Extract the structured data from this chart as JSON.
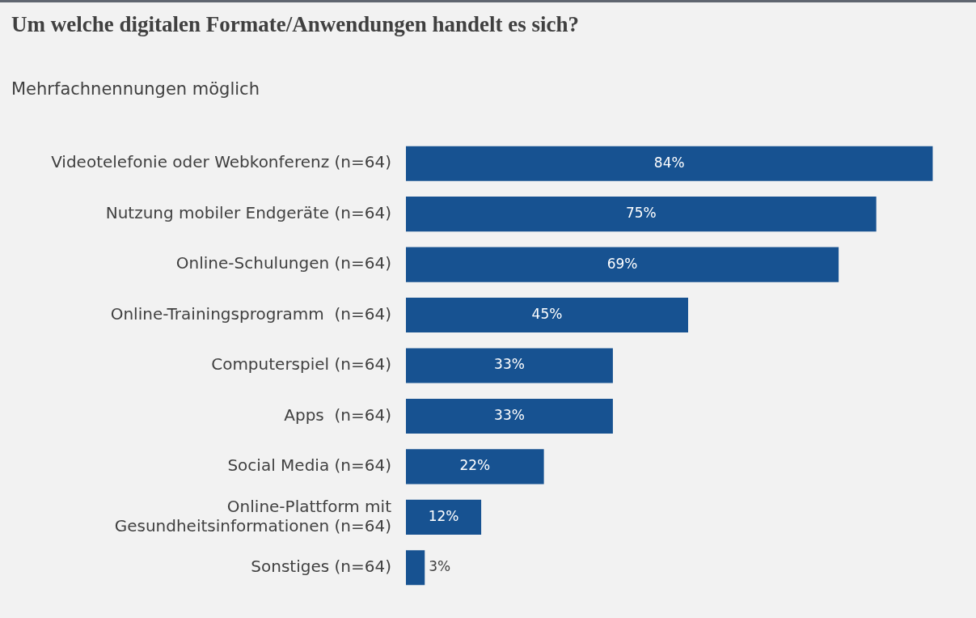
{
  "chart_data": {
    "type": "bar",
    "orientation": "horizontal",
    "title": "Um welche digitalen Formate/Anwendungen handelt es sich?",
    "subtitle": "Mehrfachnennungen möglich",
    "categories": [
      "Videotelefonie oder Webkonferenz (n=64)",
      "Nutzung mobiler Endgeräte (n=64)",
      "Online-Schulungen (n=64)",
      "Online-Trainingsprogramm  (n=64)",
      "Computerspiel (n=64)",
      "Apps  (n=64)",
      "Social Media (n=64)",
      "Online-Plattform mit\nGesundheitsinformationen (n=64)",
      "Sonstiges (n=64)"
    ],
    "values": [
      84,
      75,
      69,
      45,
      33,
      33,
      22,
      12,
      3
    ],
    "value_labels": [
      "84%",
      "75%",
      "69%",
      "45%",
      "33%",
      "33%",
      "22%",
      "12%",
      "3%"
    ],
    "color": "#175291",
    "grid": false,
    "legend": false
  }
}
